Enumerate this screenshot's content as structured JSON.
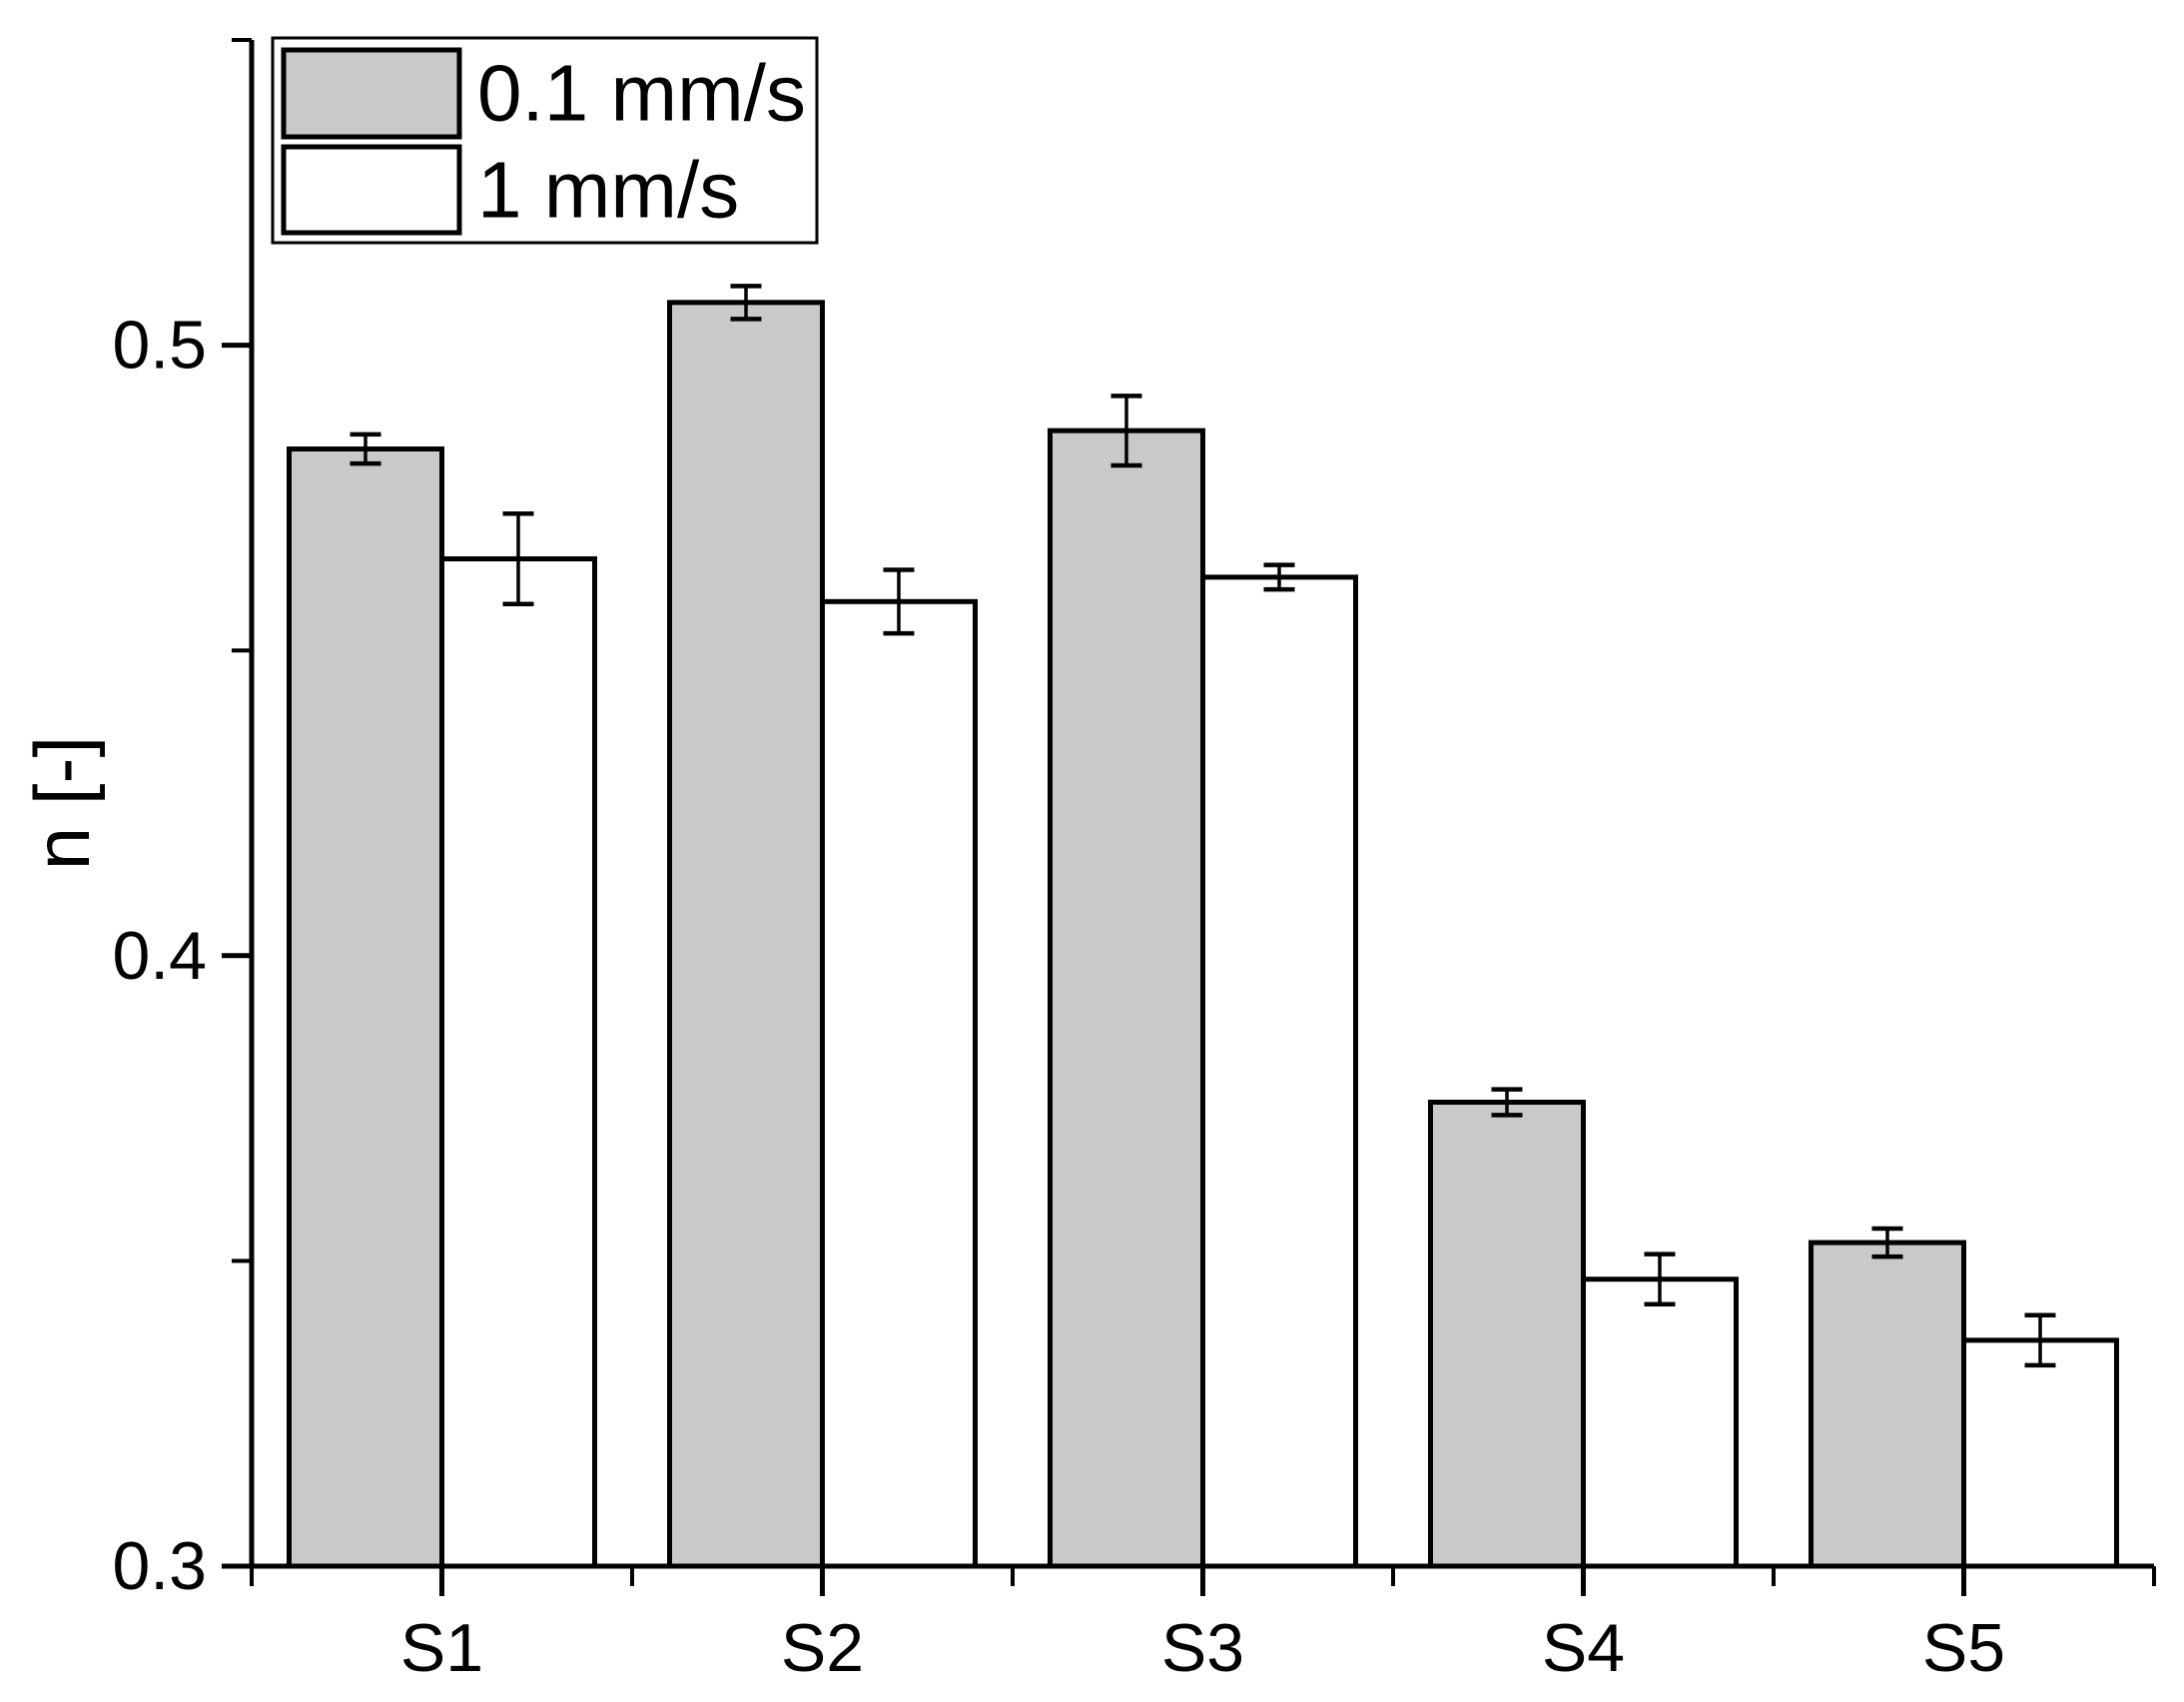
{
  "chart_data": {
    "type": "bar",
    "title": "",
    "xlabel": "",
    "ylabel": "n [-]",
    "categories": [
      "S1",
      "S2",
      "S3",
      "S4",
      "S5"
    ],
    "series": [
      {
        "name": "0.1 mm/s",
        "fill": "#c9c9c9",
        "values": [
          0.483,
          0.507,
          0.486,
          0.376,
          0.353
        ],
        "errors": [
          0.0024,
          0.0027,
          0.0057,
          0.0021,
          0.0023
        ]
      },
      {
        "name": "1 mm/s",
        "fill": "#ffffff",
        "values": [
          0.465,
          0.458,
          0.462,
          0.347,
          0.337
        ],
        "errors": [
          0.0074,
          0.0052,
          0.002,
          0.0041,
          0.0041
        ]
      }
    ],
    "ylim": [
      0.3,
      0.55
    ],
    "yticks": [
      "0.3",
      "0.4",
      "0.5"
    ],
    "y_minor_step": 0.05,
    "error_bars": true,
    "grid": false,
    "legend_position": "top-left"
  },
  "colors": {
    "axis": "#000000",
    "bar_stroke": "#000000",
    "series1_fill": "#c9c9c9",
    "series2_fill": "#ffffff",
    "background": "#ffffff"
  }
}
